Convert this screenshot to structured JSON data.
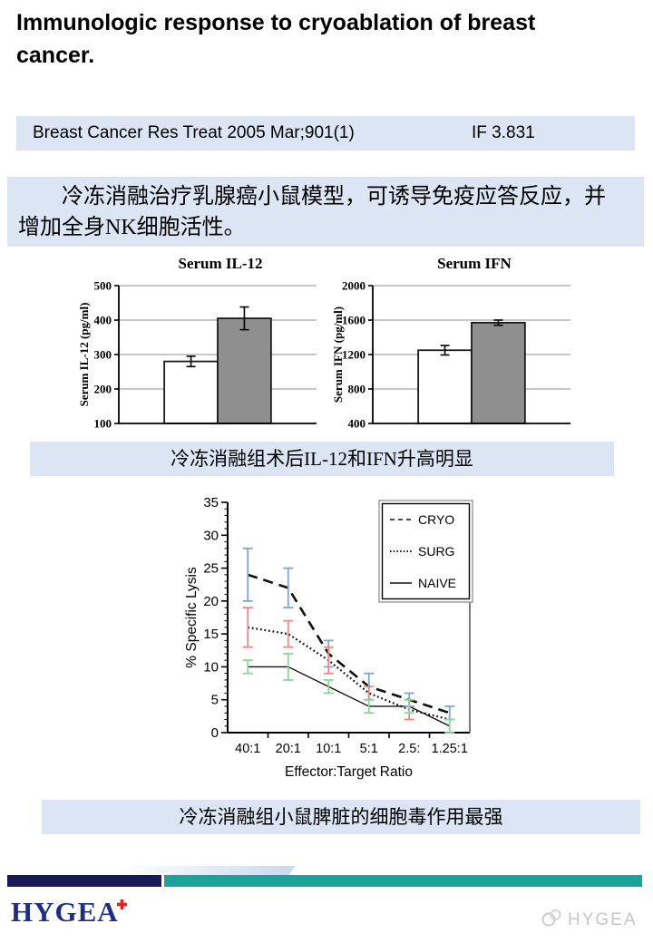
{
  "title": "Immunologic response to cryoablation of breast cancer.",
  "citation": {
    "reference": "Breast Cancer Res Treat 2005 Mar;901(1)",
    "impact_factor": "IF 3.831"
  },
  "summary_lines": [
    "冷冻消融治疗乳腺癌小鼠模型，可诱导免疫应答反应，并",
    "增加全身NK细胞活性。"
  ],
  "captions": {
    "bar_charts": "冷冻消融组术后IL-12和IFN升高明显",
    "line_chart": "冷冻消融组小鼠脾脏的细胞毒作用最强"
  },
  "chart_data": [
    {
      "type": "bar",
      "title": "Serum IL-12",
      "ylabel": "Serum IL-12 (pg/ml)",
      "ylim": [
        100,
        500
      ],
      "yticks": [
        100,
        200,
        300,
        400,
        500
      ],
      "grid": true,
      "bars": [
        {
          "group": "white-bar",
          "value": 280,
          "error": 15,
          "fill": "#ffffff"
        },
        {
          "group": "gray-bar",
          "value": 405,
          "error": 33,
          "fill": "#8f8f8f"
        }
      ]
    },
    {
      "type": "bar",
      "title": "Serum IFN",
      "ylabel": "Serum IFN (pg/ml)",
      "ylim": [
        400,
        2000
      ],
      "yticks": [
        400,
        800,
        1200,
        1600,
        2000
      ],
      "grid": true,
      "bars": [
        {
          "group": "white-bar",
          "value": 1250,
          "error": 55,
          "fill": "#ffffff"
        },
        {
          "group": "gray-bar",
          "value": 1570,
          "error": 30,
          "fill": "#8f8f8f"
        }
      ]
    },
    {
      "type": "line",
      "xlabel": "Effector:Target Ratio",
      "ylabel": "% Specific Lysis",
      "ylim": [
        0,
        35
      ],
      "yticks": [
        0,
        5,
        10,
        15,
        20,
        25,
        30,
        35
      ],
      "categories": [
        "40:1",
        "20:1",
        "10:1",
        "5:1",
        "2.5:",
        "1.25:1"
      ],
      "legend_position": "top-right",
      "series": [
        {
          "name": "CRYO",
          "line": "dashed",
          "error_color": "#7aa7d4",
          "values": [
            24,
            22,
            12,
            7,
            5,
            3
          ],
          "errors": [
            4,
            3,
            2,
            2,
            1,
            1
          ]
        },
        {
          "name": "SURG",
          "line": "dotted",
          "error_color": "#ee8787",
          "values": [
            16,
            15,
            11,
            6,
            3.5,
            2
          ],
          "errors": [
            3,
            2,
            2,
            1,
            1.5,
            0
          ]
        },
        {
          "name": "NAIVE",
          "line": "solid",
          "error_color": "#8bd49a",
          "values": [
            10,
            10,
            7,
            4,
            4,
            1
          ],
          "errors": [
            1,
            2,
            1,
            1,
            1,
            1
          ]
        }
      ]
    }
  ],
  "footer": {
    "logo_text": "HYGEA",
    "watermark_text": "HYGEA"
  },
  "colors": {
    "panel_blue": "#dbe5f3",
    "navy": "#181a57",
    "teal": "#1ba29a",
    "logo_blue": "#1e2f82",
    "logo_red": "#e2251c"
  }
}
